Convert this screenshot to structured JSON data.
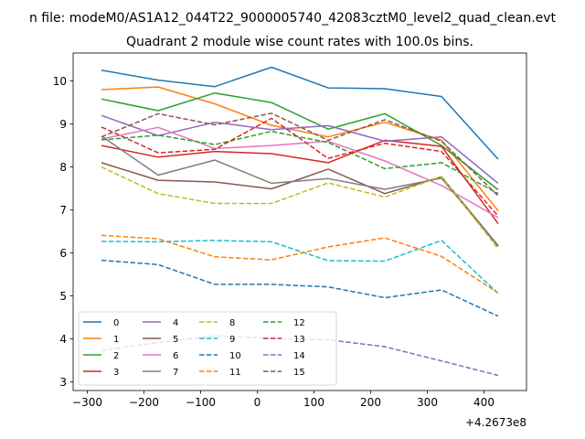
{
  "chart_data": {
    "type": "line",
    "suptitle": "n file: modeM0/AS1A12_044T22_9000005740_42083cztM0_level2_quad_clean.evt",
    "title": "Quadrant 2 module wise count rates with 100.0s bins.",
    "xlabel": "",
    "ylabel": "",
    "x_offset_label": "+4.2673e8",
    "x_offset": 426730000,
    "xlim": [
      -325,
      475
    ],
    "ylim": [
      2.8,
      10.65
    ],
    "xticks": [
      -300,
      -200,
      -100,
      0,
      100,
      200,
      300,
      400
    ],
    "xtick_labels": [
      "−300",
      "−200",
      "−100",
      "0",
      "100",
      "200",
      "300",
      "400"
    ],
    "yticks": [
      3,
      4,
      5,
      6,
      7,
      8,
      9,
      10
    ],
    "ytick_labels": [
      "3",
      "4",
      "5",
      "6",
      "7",
      "8",
      "9",
      "10"
    ],
    "grid": false,
    "legend_position": "lower-left",
    "legend_columns": 4,
    "x": [
      -275,
      -175,
      -75,
      25,
      125,
      225,
      325,
      425
    ],
    "series": [
      {
        "name": "0",
        "color": "#1f77b4",
        "dash": "solid",
        "values": [
          10.25,
          10.02,
          9.87,
          10.32,
          9.84,
          9.82,
          9.64,
          8.18
        ]
      },
      {
        "name": "1",
        "color": "#ff7f0e",
        "dash": "solid",
        "values": [
          9.8,
          9.86,
          9.47,
          8.97,
          8.7,
          9.04,
          8.62,
          6.98
        ]
      },
      {
        "name": "2",
        "color": "#2ca02c",
        "dash": "solid",
        "values": [
          9.58,
          9.31,
          9.72,
          9.5,
          8.88,
          9.24,
          8.5,
          7.47
        ]
      },
      {
        "name": "3",
        "color": "#d62728",
        "dash": "solid",
        "values": [
          8.5,
          8.23,
          8.36,
          8.31,
          8.1,
          8.62,
          8.48,
          6.68
        ]
      },
      {
        "name": "4",
        "color": "#9467bd",
        "dash": "solid",
        "values": [
          9.2,
          8.73,
          9.04,
          8.87,
          8.96,
          8.6,
          8.7,
          7.62
        ]
      },
      {
        "name": "5",
        "color": "#8c564b",
        "dash": "solid",
        "values": [
          8.1,
          7.69,
          7.65,
          7.49,
          7.95,
          7.38,
          7.77,
          6.17
        ]
      },
      {
        "name": "6",
        "color": "#e377c2",
        "dash": "solid",
        "values": [
          8.65,
          8.92,
          8.43,
          8.5,
          8.6,
          8.14,
          7.57,
          6.82
        ]
      },
      {
        "name": "7",
        "color": "#7f7f7f",
        "dash": "solid",
        "values": [
          8.72,
          7.81,
          8.16,
          7.62,
          7.73,
          7.48,
          7.74,
          6.15
        ]
      },
      {
        "name": "8",
        "color": "#bcbd22",
        "dash": "dashed",
        "values": [
          8.0,
          7.38,
          7.15,
          7.15,
          7.63,
          7.3,
          7.78,
          6.1
        ]
      },
      {
        "name": "9",
        "color": "#17becf",
        "dash": "dashed",
        "values": [
          6.27,
          6.26,
          6.29,
          6.26,
          5.82,
          5.81,
          6.29,
          5.06
        ]
      },
      {
        "name": "10",
        "color": "#1f77b4",
        "dash": "dashed",
        "values": [
          5.83,
          5.73,
          5.27,
          5.27,
          5.21,
          4.96,
          5.14,
          4.53
        ]
      },
      {
        "name": "11",
        "color": "#ff7f0e",
        "dash": "dashed",
        "values": [
          6.41,
          6.33,
          5.91,
          5.84,
          6.14,
          6.35,
          5.92,
          5.07
        ]
      },
      {
        "name": "12",
        "color": "#2ca02c",
        "dash": "dashed",
        "values": [
          8.63,
          8.74,
          8.52,
          8.83,
          8.57,
          7.96,
          8.1,
          7.38
        ]
      },
      {
        "name": "13",
        "color": "#d62728",
        "dash": "dashed",
        "values": [
          8.93,
          8.33,
          8.41,
          9.13,
          8.2,
          8.55,
          8.36,
          6.86
        ]
      },
      {
        "name": "14",
        "color": "#9467bd",
        "dash": "dashed",
        "values": [
          3.73,
          3.92,
          4.07,
          4.01,
          3.98,
          3.82,
          3.49,
          3.15
        ]
      },
      {
        "name": "15",
        "color": "#8c564b",
        "dash": "dashed",
        "values": [
          8.7,
          9.24,
          8.98,
          9.25,
          8.62,
          9.1,
          8.6,
          7.33
        ]
      }
    ]
  }
}
